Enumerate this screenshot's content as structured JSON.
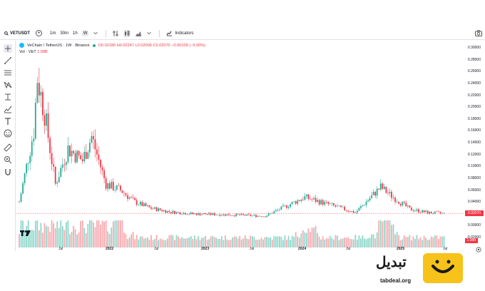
{
  "toolbar": {
    "symbol": "VETUSDT",
    "timeframes": [
      "1m",
      "30m",
      "1h",
      "W"
    ],
    "active_timeframe": "W",
    "indicators_label": "Indicators"
  },
  "legend": {
    "title": "VeChain / TetherUS · 1W · Binance",
    "ohlc": "O0.02180 H0.02247 L0.02006 C0.02070 −0.00109 (−5.00%)",
    "vol_label": "Vol · VET",
    "vol_value": "1.08B"
  },
  "price_axis": {
    "labels": [
      "0.30000",
      "0.28000",
      "0.26000",
      "0.24000",
      "0.22000",
      "0.20000",
      "0.18000",
      "0.16000",
      "0.14000",
      "0.12000",
      "0.10000",
      "0.08000",
      "0.06000",
      "0.04000",
      "0.02000",
      "0.00000",
      "-0.02000"
    ],
    "last_price": "0.02070",
    "volume_tag": "1.08B"
  },
  "time_axis": {
    "labels": [
      {
        "text": "Jul",
        "year": false
      },
      {
        "text": "2022",
        "year": true
      },
      {
        "text": "Jul",
        "year": false
      },
      {
        "text": "2023",
        "year": true
      },
      {
        "text": "Jul",
        "year": false
      },
      {
        "text": "2024",
        "year": true
      },
      {
        "text": "Jul",
        "year": false
      },
      {
        "text": "2025",
        "year": true
      },
      {
        "text": "Jul",
        "year": false
      }
    ]
  },
  "colors": {
    "up": "#22ab94",
    "down": "#f23645",
    "up_volume": "#8fd6ca",
    "down_volume": "#f7a9ae",
    "brand_yellow": "#f7c21a"
  },
  "chart_data": {
    "type": "candlestick",
    "title": "VeChain / TetherUS · 1W · Binance",
    "ylim": [
      -0.02,
      0.3
    ],
    "anchor_series": {
      "name": "approx close (key points)",
      "x": [
        "2021-02",
        "2021-04",
        "2021-04-mid",
        "2021-05",
        "2021-06",
        "2021-08",
        "2021-09",
        "2021-10",
        "2021-11",
        "2022-01",
        "2022-03",
        "2022-05",
        "2022-07",
        "2022-10",
        "2023-01",
        "2023-07",
        "2023-10",
        "2024-03",
        "2024-06",
        "2024-09",
        "2024-12",
        "2025-01",
        "2025-03",
        "2025-05",
        "2025-07"
      ],
      "y": [
        0.04,
        0.16,
        0.25,
        0.19,
        0.07,
        0.13,
        0.12,
        0.11,
        0.15,
        0.07,
        0.06,
        0.04,
        0.03,
        0.023,
        0.02,
        0.018,
        0.016,
        0.048,
        0.035,
        0.022,
        0.065,
        0.05,
        0.028,
        0.022,
        0.0207
      ]
    }
  },
  "brand": {
    "arabic_name": "تبديل",
    "url": "tabdeal.org"
  }
}
